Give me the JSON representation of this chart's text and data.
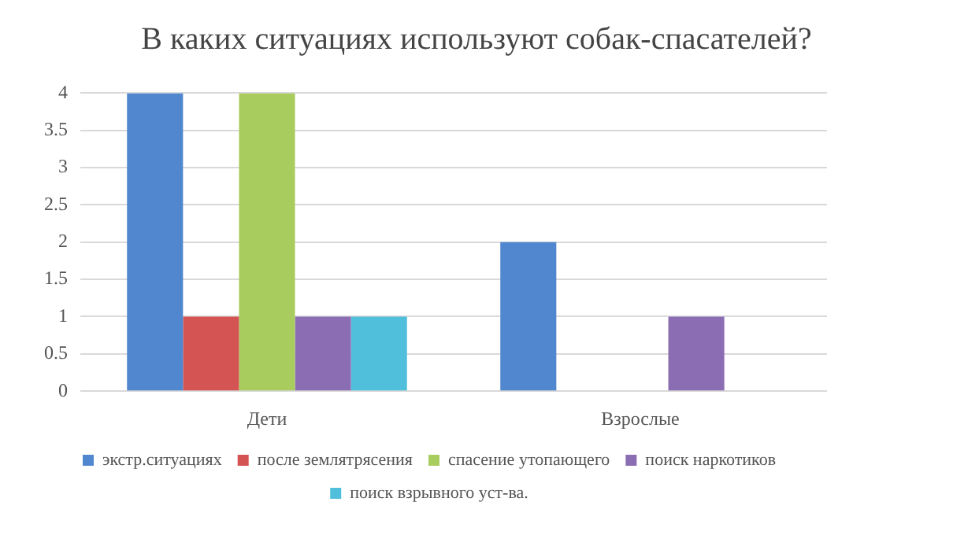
{
  "chart_data": {
    "type": "bar",
    "title": "В каких ситуациях используют собак-спасателей?",
    "categories": [
      "Дети",
      "Взрослые"
    ],
    "series": [
      {
        "name": "экстр.ситуациях",
        "color": "#5187cf",
        "values": [
          4,
          2
        ]
      },
      {
        "name": "после землятрясения",
        "color": "#d45353",
        "values": [
          1,
          null
        ]
      },
      {
        "name": "спасение утопающего",
        "color": "#a9cc5f",
        "values": [
          4,
          null
        ]
      },
      {
        "name": "поиск наркотиков",
        "color": "#8b6db3",
        "values": [
          1,
          1
        ]
      },
      {
        "name": "поиск взрывного уст-ва.",
        "color": "#4fbfdb",
        "values": [
          1,
          null
        ]
      }
    ],
    "ylim": [
      0,
      4
    ],
    "yticks": [
      0,
      0.5,
      1,
      1.5,
      2,
      2.5,
      3,
      3.5,
      4
    ],
    "grid": "y",
    "legend": "bottom"
  }
}
